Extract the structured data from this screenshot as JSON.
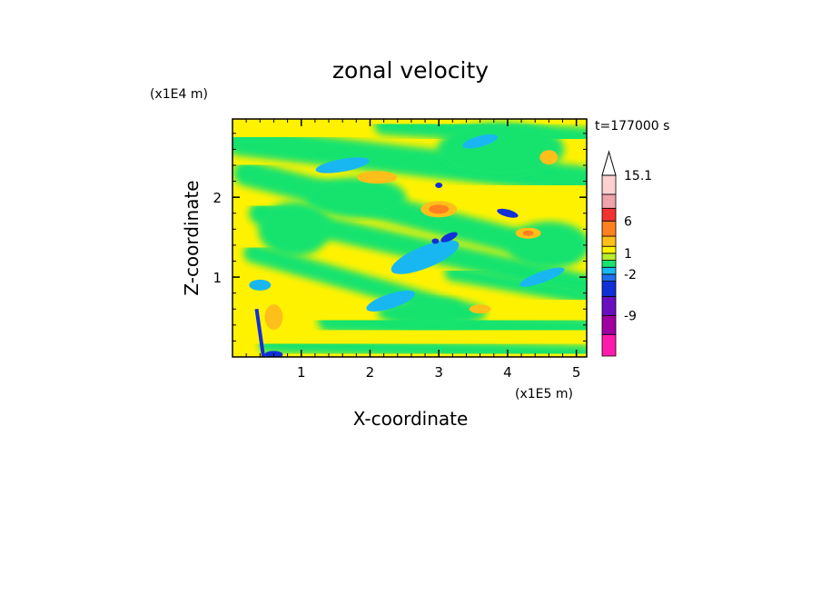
{
  "chart_data": {
    "type": "heatmap",
    "title": "zonal velocity",
    "xlabel": "X-coordinate",
    "ylabel": "Z-coordinate",
    "x_unit": "(x1E5 m)",
    "y_unit": "(x1E4 m)",
    "time_label": "t=177000 s",
    "xlim": [
      0.0,
      5.15
    ],
    "ylim": [
      0.0,
      2.98
    ],
    "x_ticks": [
      {
        "value": 1,
        "label": "1"
      },
      {
        "value": 2,
        "label": "2"
      },
      {
        "value": 3,
        "label": "3"
      },
      {
        "value": 4,
        "label": "4"
      },
      {
        "value": 5,
        "label": "5"
      }
    ],
    "y_ticks": [
      {
        "value": 1,
        "label": "1"
      },
      {
        "value": 2,
        "label": "2"
      }
    ],
    "colorbar": {
      "extend_max": true,
      "levels": [
        {
          "value": -12,
          "color": "#ff1aae",
          "label": ""
        },
        {
          "value": -9,
          "color": "#a000a0",
          "label": "-9"
        },
        {
          "value": -6,
          "color": "#6a0fbf",
          "label": ""
        },
        {
          "value": -4,
          "color": "#1030d8",
          "label": ""
        },
        {
          "value": -2,
          "color": "#1f6ff0",
          "label": "-2"
        },
        {
          "value": -1,
          "color": "#19b7f2",
          "label": ""
        },
        {
          "value": 0,
          "color": "#19e36e",
          "label": ""
        },
        {
          "value": 1,
          "color": "#b8ef2c",
          "label": "1"
        },
        {
          "value": 2,
          "color": "#fff200",
          "label": ""
        },
        {
          "value": 4,
          "color": "#ffbf1a",
          "label": ""
        },
        {
          "value": 6,
          "color": "#ff8020",
          "label": "6"
        },
        {
          "value": 9,
          "color": "#f23232",
          "label": ""
        },
        {
          "value": 12,
          "color": "#f0a3a8",
          "label": ""
        },
        {
          "value": 15.1,
          "color": "#ffd0d0",
          "label": "15.1"
        }
      ]
    },
    "field_features": [
      {
        "type": "positive",
        "x": 3.0,
        "z": 1.85,
        "value": 8
      },
      {
        "type": "positive",
        "x": 4.3,
        "z": 1.55,
        "value": 5
      },
      {
        "type": "positive",
        "x": 2.2,
        "z": 2.25,
        "value": 4
      },
      {
        "type": "negative",
        "x": 3.0,
        "z": 1.45,
        "value": -3
      },
      {
        "type": "negative",
        "x": 3.1,
        "z": 1.5,
        "value": -6
      },
      {
        "type": "negative",
        "x": 4.0,
        "z": 1.8,
        "value": -6
      },
      {
        "type": "negative",
        "x": 3.0,
        "z": 2.15,
        "value": -5
      },
      {
        "type": "negative",
        "x": 0.55,
        "z": 0.2,
        "value": -5
      }
    ]
  }
}
